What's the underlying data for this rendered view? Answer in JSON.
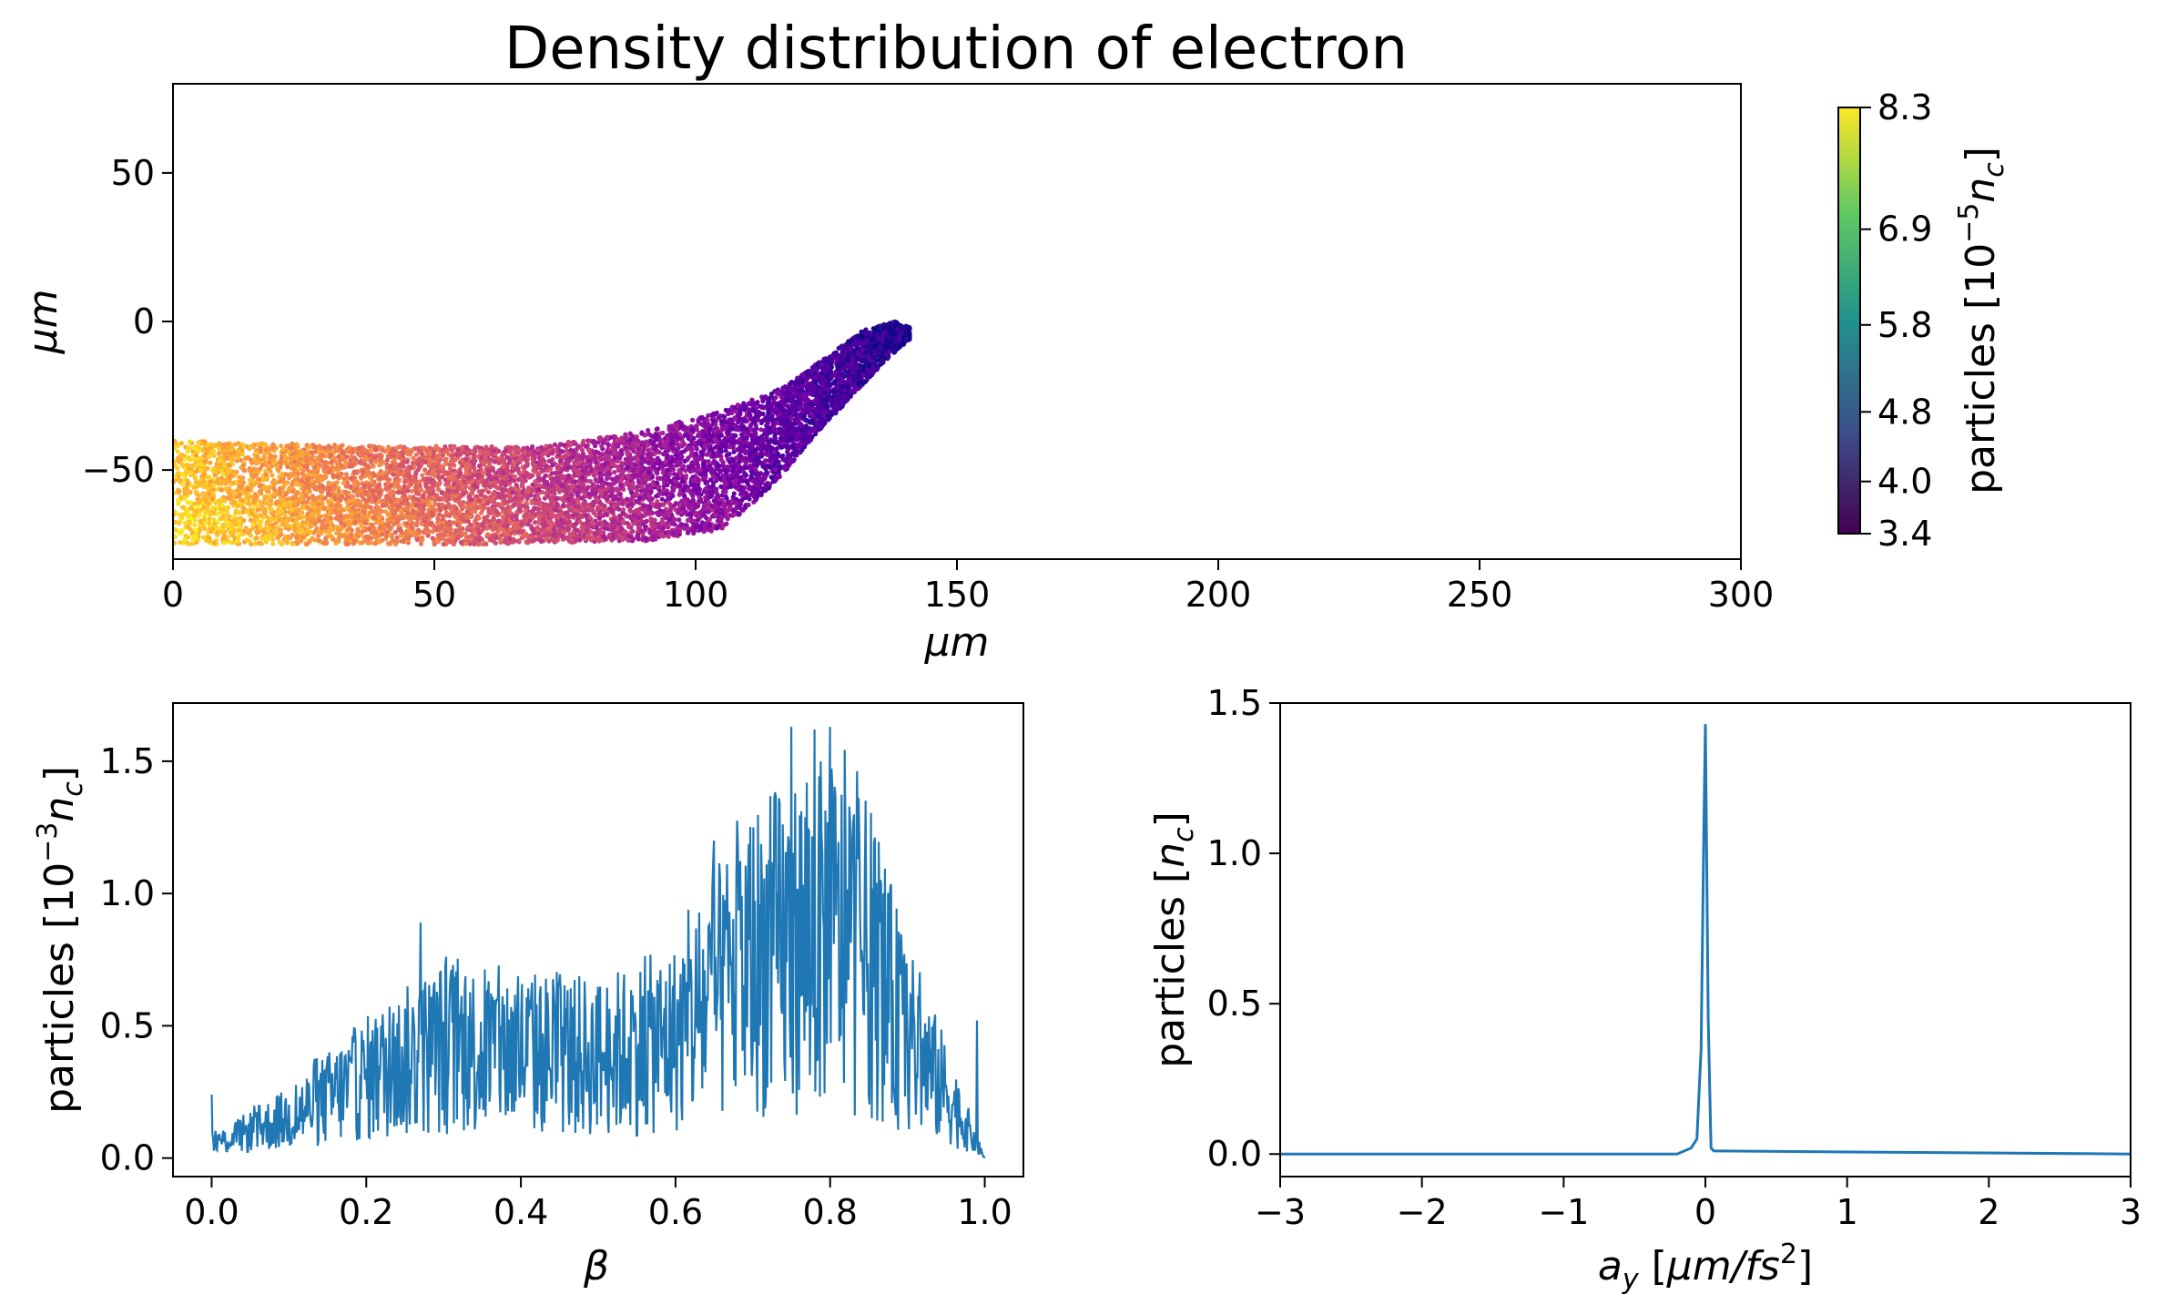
{
  "colors": {
    "line": "#1f77b4",
    "colormap": [
      "#0d0887",
      "#46039f",
      "#7201a8",
      "#9c179e",
      "#bd3786",
      "#d8576b",
      "#ed7953",
      "#fb9f3a",
      "#fdca26",
      "#f0f921"
    ],
    "colorbar": [
      "#440154",
      "#3b528b",
      "#21918c",
      "#5ec962",
      "#fde725"
    ]
  },
  "chart_data": [
    {
      "type": "scatter",
      "title": "Density distribution of electron",
      "xlabel": "μm",
      "ylabel": "μm",
      "xlim": [
        0,
        300
      ],
      "ylim": [
        -80,
        80
      ],
      "xticks": [
        0,
        50,
        100,
        150,
        200,
        250,
        300
      ],
      "yticks": [
        50,
        0,
        -50
      ],
      "xtick_labels": [
        "0",
        "50",
        "100",
        "150",
        "200",
        "250",
        "300"
      ],
      "ytick_labels": [
        "50",
        "0",
        "−50"
      ],
      "band_lower": [
        [
          0,
          -75
        ],
        [
          60,
          -75
        ],
        [
          90,
          -74
        ],
        [
          105,
          -70
        ],
        [
          115,
          -55
        ],
        [
          122,
          -40
        ],
        [
          130,
          -25
        ],
        [
          137,
          -12
        ],
        [
          141,
          -6
        ]
      ],
      "band_upper": [
        [
          0,
          -40
        ],
        [
          40,
          -42
        ],
        [
          70,
          -42
        ],
        [
          90,
          -37
        ],
        [
          105,
          -30
        ],
        [
          117,
          -22
        ],
        [
          125,
          -12
        ],
        [
          132,
          -3
        ],
        [
          138,
          0
        ],
        [
          141,
          -2
        ]
      ],
      "points_generated": 9000,
      "colorbar": {
        "label": "particles [10",
        "label_exp": "−5",
        "label_sym": "n",
        "label_sub": "c",
        "label_close": "]",
        "range": [
          3.4,
          8.3
        ],
        "ticks": [
          "8.3",
          "6.9",
          "5.8",
          "4.8",
          "4.0",
          "3.4"
        ],
        "tick_values": [
          8.3,
          6.9,
          5.8,
          4.8,
          4.0,
          3.4
        ]
      }
    },
    {
      "type": "line",
      "xlabel": "β",
      "ylabel_parts": [
        "particles [10",
        "−3",
        "n",
        "c",
        "]"
      ],
      "xlim": [
        -0.05,
        1.05
      ],
      "ylim": [
        -0.07,
        1.72
      ],
      "xticks": [
        0.0,
        0.2,
        0.4,
        0.6,
        0.8,
        1.0
      ],
      "xtick_labels": [
        "0.0",
        "0.2",
        "0.4",
        "0.6",
        "0.8",
        "1.0"
      ],
      "yticks": [
        0.0,
        0.5,
        1.0,
        1.5
      ],
      "ytick_labels": [
        "0.0",
        "0.5",
        "1.0",
        "1.5"
      ],
      "envelope": [
        [
          0.0,
          0.05
        ],
        [
          0.1,
          0.15
        ],
        [
          0.2,
          0.3
        ],
        [
          0.3,
          0.42
        ],
        [
          0.4,
          0.4
        ],
        [
          0.5,
          0.38
        ],
        [
          0.6,
          0.45
        ],
        [
          0.65,
          0.6
        ],
        [
          0.7,
          0.75
        ],
        [
          0.8,
          0.85
        ],
        [
          0.85,
          0.75
        ],
        [
          0.9,
          0.45
        ],
        [
          0.95,
          0.25
        ],
        [
          1.0,
          0.0
        ]
      ],
      "spikes": [
        [
          0.0,
          0.24
        ],
        [
          0.27,
          0.89
        ],
        [
          0.65,
          1.2
        ],
        [
          0.75,
          1.63
        ],
        [
          0.78,
          1.62
        ],
        [
          0.8,
          1.63
        ],
        [
          0.99,
          0.52
        ]
      ],
      "samples": 1000
    },
    {
      "type": "line",
      "xlabel_parts": [
        "a",
        "y",
        " [",
        "μm/fs",
        "2",
        "]"
      ],
      "ylabel_parts": [
        "particles [",
        "n",
        "c",
        "]"
      ],
      "xlim": [
        -3,
        3
      ],
      "ylim": [
        -0.075,
        1.5
      ],
      "xticks": [
        -3,
        -2,
        -1,
        0,
        1,
        2,
        3
      ],
      "xtick_labels": [
        "−3",
        "−2",
        "−1",
        "0",
        "1",
        "2",
        "3"
      ],
      "yticks": [
        0.0,
        0.5,
        1.0,
        1.5
      ],
      "ytick_labels": [
        "0.0",
        "0.5",
        "1.0",
        "1.5"
      ],
      "x": [
        -3,
        -0.2,
        -0.1,
        -0.06,
        -0.03,
        -0.01,
        0.0,
        0.02,
        0.04,
        0.06,
        0.1,
        3
      ],
      "y": [
        0.0,
        0.0,
        0.02,
        0.05,
        0.35,
        1.1,
        1.43,
        0.45,
        0.02,
        0.01,
        0.01,
        0.0
      ]
    }
  ]
}
